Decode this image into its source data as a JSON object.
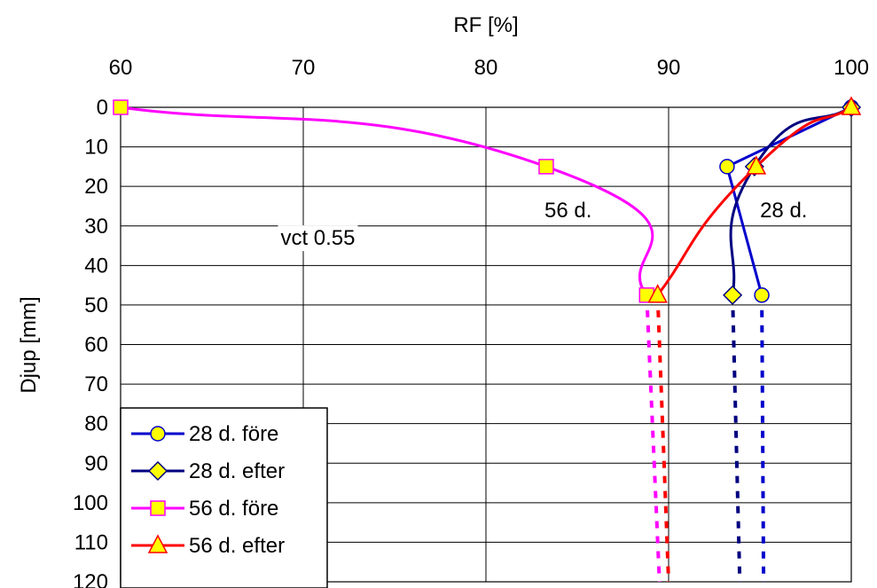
{
  "chart_data": {
    "type": "line",
    "title": "",
    "xlabel": "RF [%]",
    "ylabel": "Djup [mm]",
    "xlim": [
      60,
      100
    ],
    "ylim": [
      0,
      120
    ],
    "y_inverted": true,
    "x_axis_position": "top",
    "x_ticks": [
      60,
      70,
      80,
      90,
      100
    ],
    "y_ticks": [
      0,
      10,
      20,
      30,
      40,
      50,
      60,
      70,
      80,
      90,
      100,
      110,
      120
    ],
    "grid": true,
    "legend_position": "bottom-left",
    "series": [
      {
        "name": "28 d. före",
        "color": "#0000CC",
        "marker": "circle",
        "smooth": false,
        "points": [
          [
            100,
            0
          ],
          [
            93.2,
            15
          ],
          [
            95.1,
            47.5
          ]
        ],
        "extension": [
          [
            95.1,
            47.5
          ],
          [
            95.2,
            120
          ]
        ]
      },
      {
        "name": "28 d. efter",
        "color": "#000080",
        "marker": "diamond",
        "smooth": true,
        "points": [
          [
            100,
            0
          ],
          [
            94.7,
            15
          ],
          [
            93.5,
            47.5
          ]
        ],
        "extension": [
          [
            93.5,
            47.5
          ],
          [
            93.9,
            120
          ]
        ]
      },
      {
        "name": "56 d. före",
        "color": "#FF00FF",
        "marker": "square",
        "smooth": true,
        "points": [
          [
            60,
            0
          ],
          [
            83.3,
            15
          ],
          [
            88.8,
            47.5
          ]
        ],
        "extension": [
          [
            88.8,
            47.5
          ],
          [
            89.5,
            120
          ]
        ]
      },
      {
        "name": "56 d. efter",
        "color": "#FF0000",
        "marker": "triangle",
        "smooth": true,
        "points": [
          [
            100,
            0
          ],
          [
            94.8,
            15
          ],
          [
            89.4,
            47.5
          ]
        ],
        "extension": [
          [
            89.4,
            47.5
          ],
          [
            90,
            120
          ]
        ]
      }
    ],
    "annotations": [
      {
        "text": "vct 0.55",
        "x": 70.8,
        "y": 33
      },
      {
        "text": "56 d.",
        "x": 84.5,
        "y": 26
      },
      {
        "text": "28 d.",
        "x": 96.3,
        "y": 26
      }
    ],
    "marker_fill": "#FFFF00"
  }
}
